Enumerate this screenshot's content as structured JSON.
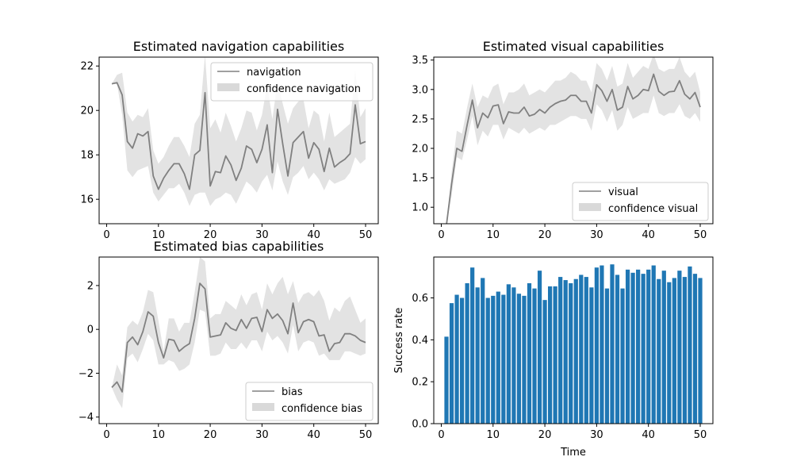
{
  "figure": {
    "background": "#ffffff"
  },
  "colors": {
    "line": "#808080",
    "band": "#d9d9d9",
    "bar": "#1f77b4",
    "axes": "#000000",
    "legend_border": "#cccccc"
  },
  "chart_data": [
    {
      "id": "navigation",
      "type": "line",
      "title": "Estimated navigation capabilities",
      "xlabel": "",
      "ylabel": "",
      "xlim": [
        -1.45,
        52.45
      ],
      "ylim": [
        14.9,
        22.4
      ],
      "xticks": [
        0,
        10,
        20,
        30,
        40,
        50
      ],
      "yticks": [
        16,
        18,
        20,
        22
      ],
      "legend": {
        "position": "top-right",
        "entries": [
          "navigation",
          "confidence navigation"
        ]
      },
      "x": [
        1,
        2,
        3,
        4,
        5,
        6,
        7,
        8,
        9,
        10,
        11,
        12,
        13,
        14,
        15,
        16,
        17,
        18,
        19,
        20,
        21,
        22,
        23,
        24,
        25,
        26,
        27,
        28,
        29,
        30,
        31,
        32,
        33,
        34,
        35,
        36,
        37,
        38,
        39,
        40,
        41,
        42,
        43,
        44,
        45,
        46,
        47,
        48,
        49,
        50
      ],
      "series": [
        {
          "name": "navigation",
          "values": [
            21.2,
            21.25,
            20.7,
            18.6,
            18.3,
            18.95,
            18.85,
            19.05,
            17.05,
            16.45,
            16.95,
            17.3,
            17.6,
            17.6,
            17.15,
            16.45,
            18.0,
            18.2,
            20.8,
            16.6,
            17.25,
            17.2,
            17.95,
            17.55,
            16.85,
            17.4,
            18.4,
            18.25,
            17.65,
            18.25,
            19.35,
            17.2,
            20.05,
            18.5,
            17.05,
            18.55,
            18.8,
            19.05,
            17.85,
            18.55,
            18.25,
            17.25,
            18.3,
            17.45,
            17.65,
            17.8,
            18.05,
            20.25,
            18.5,
            18.6
          ]
        },
        {
          "name": "confidence navigation",
          "kind": "band",
          "lower": [
            21.2,
            21.2,
            19.8,
            17.3,
            17.0,
            17.3,
            17.4,
            17.5,
            16.3,
            15.9,
            16.2,
            16.5,
            16.5,
            16.7,
            16.3,
            15.7,
            16.2,
            16.3,
            16.3,
            15.7,
            16.0,
            16.1,
            16.3,
            16.2,
            15.8,
            16.3,
            16.8,
            16.6,
            16.3,
            16.8,
            17.1,
            16.4,
            17.7,
            16.8,
            16.2,
            17.0,
            17.2,
            17.5,
            16.9,
            17.2,
            16.9,
            16.4,
            16.9,
            16.7,
            16.8,
            16.9,
            17.2,
            17.9,
            17.6,
            17.8
          ],
          "upper": [
            21.2,
            21.6,
            21.7,
            19.9,
            19.5,
            19.8,
            19.7,
            20.1,
            18.2,
            17.6,
            17.9,
            18.4,
            18.8,
            18.8,
            18.4,
            17.9,
            19.4,
            19.8,
            22.5,
            19.2,
            19.6,
            19.0,
            19.9,
            19.3,
            18.6,
            19.2,
            20.0,
            19.9,
            19.1,
            19.8,
            21.2,
            19.6,
            21.3,
            20.3,
            19.4,
            20.1,
            20.4,
            20.5,
            19.2,
            20.0,
            19.8,
            18.6,
            19.9,
            18.8,
            19.0,
            19.2,
            19.4,
            21.8,
            19.7,
            20.1
          ]
        }
      ]
    },
    {
      "id": "visual",
      "type": "line",
      "title": "Estimated visual capabilities",
      "xlabel": "",
      "ylabel": "",
      "xlim": [
        -1.45,
        52.45
      ],
      "ylim": [
        0.72,
        3.55
      ],
      "xticks": [
        0,
        10,
        20,
        30,
        40,
        50
      ],
      "yticks": [
        1.0,
        1.5,
        2.0,
        2.5,
        3.0,
        3.5
      ],
      "legend": {
        "position": "bottom-right",
        "entries": [
          "visual",
          "confidence visual"
        ]
      },
      "x": [
        1,
        2,
        3,
        4,
        5,
        6,
        7,
        8,
        9,
        10,
        11,
        12,
        13,
        14,
        15,
        16,
        17,
        18,
        19,
        20,
        21,
        22,
        23,
        24,
        25,
        26,
        27,
        28,
        29,
        30,
        31,
        32,
        33,
        34,
        35,
        36,
        37,
        38,
        39,
        40,
        41,
        42,
        43,
        44,
        45,
        46,
        47,
        48,
        49,
        50
      ],
      "series": [
        {
          "name": "visual",
          "values": [
            0.7,
            1.4,
            2.0,
            1.95,
            2.4,
            2.82,
            2.35,
            2.6,
            2.52,
            2.72,
            2.74,
            2.42,
            2.62,
            2.6,
            2.6,
            2.7,
            2.55,
            2.58,
            2.66,
            2.6,
            2.7,
            2.76,
            2.8,
            2.82,
            2.9,
            2.9,
            2.8,
            2.8,
            2.6,
            3.08,
            2.98,
            2.8,
            3.0,
            2.65,
            2.7,
            3.05,
            2.84,
            2.9,
            3.0,
            2.98,
            3.26,
            2.97,
            2.9,
            2.96,
            2.97,
            3.15,
            2.92,
            2.84,
            2.95,
            2.7
          ]
        },
        {
          "name": "confidence visual",
          "kind": "band",
          "lower": [
            0.7,
            1.2,
            1.85,
            1.8,
            2.15,
            2.55,
            2.05,
            2.3,
            2.2,
            2.4,
            2.4,
            2.15,
            2.35,
            2.3,
            2.25,
            2.35,
            2.25,
            2.3,
            2.35,
            2.3,
            2.4,
            2.4,
            2.45,
            2.5,
            2.55,
            2.55,
            2.5,
            2.5,
            2.3,
            2.75,
            2.65,
            2.45,
            2.65,
            2.3,
            2.4,
            2.7,
            2.5,
            2.55,
            2.6,
            2.6,
            2.9,
            2.6,
            2.55,
            2.6,
            2.6,
            2.75,
            2.55,
            2.5,
            2.6,
            2.45
          ],
          "upper": [
            0.7,
            1.6,
            2.3,
            2.25,
            2.7,
            3.1,
            2.7,
            2.9,
            2.85,
            3.05,
            3.1,
            2.75,
            2.95,
            2.95,
            3.0,
            3.1,
            2.9,
            2.95,
            3.0,
            2.95,
            3.05,
            3.15,
            3.15,
            3.2,
            3.3,
            3.25,
            3.15,
            3.15,
            2.95,
            3.45,
            3.35,
            3.15,
            3.4,
            3.05,
            3.1,
            3.45,
            3.2,
            3.3,
            3.4,
            3.35,
            3.6,
            3.35,
            3.3,
            3.35,
            3.35,
            3.55,
            3.3,
            3.2,
            3.3,
            2.95
          ]
        }
      ]
    },
    {
      "id": "bias",
      "type": "line",
      "title": "Estimated bias capabilities",
      "xlabel": "",
      "ylabel": "",
      "xlim": [
        -1.45,
        52.45
      ],
      "ylim": [
        -4.3,
        3.3
      ],
      "xticks": [
        0,
        10,
        20,
        30,
        40,
        50
      ],
      "yticks": [
        -4,
        -2,
        0,
        2
      ],
      "legend": {
        "position": "bottom-right",
        "entries": [
          "bias",
          "confidence bias"
        ]
      },
      "x": [
        1,
        2,
        3,
        4,
        5,
        6,
        7,
        8,
        9,
        10,
        11,
        12,
        13,
        14,
        15,
        16,
        17,
        18,
        19,
        20,
        21,
        22,
        23,
        24,
        25,
        26,
        27,
        28,
        29,
        30,
        31,
        32,
        33,
        34,
        35,
        36,
        37,
        38,
        39,
        40,
        41,
        42,
        43,
        44,
        45,
        46,
        47,
        48,
        49,
        50
      ],
      "series": [
        {
          "name": "bias",
          "values": [
            -2.65,
            -2.4,
            -2.85,
            -0.6,
            -0.35,
            -0.7,
            -0.1,
            0.8,
            0.6,
            -0.6,
            -1.3,
            -0.45,
            -0.5,
            -1.0,
            -0.8,
            -0.65,
            0.5,
            2.1,
            1.85,
            -0.35,
            -0.3,
            -0.25,
            0.3,
            0.05,
            -0.05,
            0.45,
            0.05,
            0.5,
            0.55,
            -0.1,
            0.9,
            0.5,
            0.7,
            0.4,
            -0.2,
            1.2,
            -0.15,
            0.35,
            0.45,
            0.35,
            -0.3,
            -0.25,
            -1.0,
            -0.65,
            -0.6,
            -0.2,
            -0.2,
            -0.3,
            -0.5,
            -0.6
          ]
        },
        {
          "name": "confidence bias",
          "kind": "band",
          "lower": [
            -2.65,
            -3.2,
            -3.6,
            -1.3,
            -1.1,
            -1.5,
            -0.9,
            -0.2,
            -0.5,
            -1.6,
            -1.6,
            -1.4,
            -1.5,
            -1.9,
            -1.8,
            -1.6,
            -0.6,
            0.9,
            0.8,
            -1.2,
            -1.2,
            -1.1,
            -0.6,
            -0.9,
            -0.9,
            -0.6,
            -0.9,
            -0.5,
            -0.5,
            -1.0,
            -0.1,
            -0.5,
            -0.3,
            -0.6,
            -1.1,
            0.2,
            -1.0,
            -0.6,
            -0.5,
            -0.6,
            -1.2,
            -1.1,
            -1.4,
            -1.4,
            -1.4,
            -1.0,
            -1.0,
            -1.1,
            -1.2,
            -1.1
          ],
          "upper": [
            -2.65,
            -1.6,
            -2.1,
            0.1,
            0.4,
            0.2,
            0.8,
            1.8,
            1.7,
            0.4,
            -1.0,
            0.5,
            0.5,
            -0.1,
            0.3,
            0.3,
            1.7,
            3.3,
            3.1,
            0.5,
            0.7,
            0.7,
            1.3,
            1.1,
            0.9,
            1.6,
            1.1,
            1.6,
            1.7,
            0.9,
            2.1,
            1.6,
            2.1,
            2.4,
            1.6,
            2.2,
            1.2,
            1.6,
            1.7,
            1.5,
            1.8,
            1.3,
            0.4,
            1.0,
            0.8,
            1.3,
            1.5,
            0.9,
            0.3,
            0.5
          ]
        }
      ]
    },
    {
      "id": "success",
      "type": "bar",
      "title": "",
      "xlabel": "Time",
      "ylabel": "Success rate",
      "xlim": [
        -1.45,
        52.45
      ],
      "ylim": [
        0,
        0.795
      ],
      "xticks": [
        0,
        10,
        20,
        30,
        40,
        50
      ],
      "yticks": [
        0.0,
        0.2,
        0.4,
        0.6
      ],
      "bar_width": 0.8,
      "x": [
        1,
        2,
        3,
        4,
        5,
        6,
        7,
        8,
        9,
        10,
        11,
        12,
        13,
        14,
        15,
        16,
        17,
        18,
        19,
        20,
        21,
        22,
        23,
        24,
        25,
        26,
        27,
        28,
        29,
        30,
        31,
        32,
        33,
        34,
        35,
        36,
        37,
        38,
        39,
        40,
        41,
        42,
        43,
        44,
        45,
        46,
        47,
        48,
        49,
        50
      ],
      "values": [
        0.415,
        0.575,
        0.615,
        0.6,
        0.67,
        0.745,
        0.65,
        0.695,
        0.6,
        0.61,
        0.63,
        0.615,
        0.665,
        0.65,
        0.62,
        0.61,
        0.67,
        0.645,
        0.73,
        0.59,
        0.655,
        0.655,
        0.7,
        0.685,
        0.67,
        0.69,
        0.71,
        0.7,
        0.65,
        0.745,
        0.755,
        0.645,
        0.76,
        0.71,
        0.645,
        0.735,
        0.72,
        0.735,
        0.715,
        0.735,
        0.755,
        0.69,
        0.73,
        0.675,
        0.695,
        0.73,
        0.7,
        0.75,
        0.715,
        0.695
      ]
    }
  ]
}
